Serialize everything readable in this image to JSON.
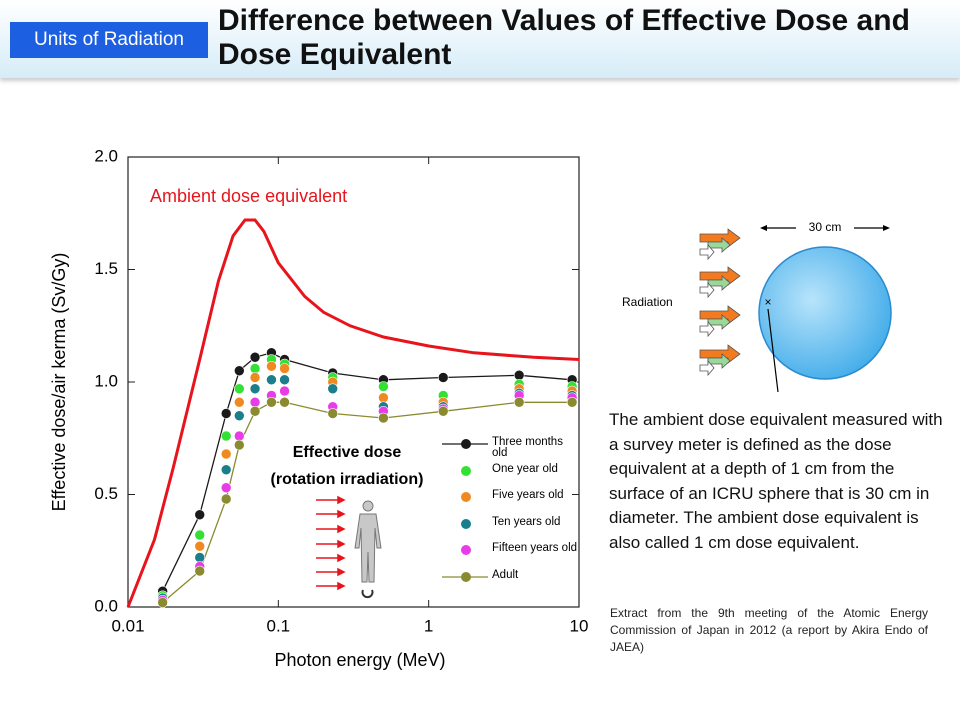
{
  "header": {
    "tag": "Units of Radiation",
    "title": "Difference between Values of Effective Dose and Dose Equivalent"
  },
  "chart_data": {
    "type": "line",
    "xlabel": "Photon energy (MeV)",
    "ylabel": "Effective dose/air kerma (Sv/Gy)",
    "xscale": "log",
    "xlim": [
      0.01,
      10
    ],
    "xticks": [
      0.01,
      0.1,
      1,
      10
    ],
    "ylim": [
      0,
      2.0
    ],
    "yticks": [
      {
        "value": 0,
        "label": "0.0"
      },
      0.5,
      {
        "value": 1,
        "label": "1.0"
      },
      1.5,
      {
        "value": 2,
        "label": "2.0"
      }
    ],
    "annotations": [
      "Effective dose",
      "(rotation irradiation)"
    ],
    "series": [
      {
        "name": "Ambient dose equivalent",
        "color": "#e8141c",
        "line": true,
        "markers": false,
        "x": [
          0.01,
          0.015,
          0.02,
          0.03,
          0.04,
          0.05,
          0.06,
          0.07,
          0.08,
          0.1,
          0.15,
          0.2,
          0.3,
          0.5,
          1,
          2,
          5,
          10
        ],
        "values": [
          0,
          0.3,
          0.62,
          1.1,
          1.45,
          1.65,
          1.72,
          1.72,
          1.67,
          1.53,
          1.38,
          1.31,
          1.25,
          1.2,
          1.16,
          1.13,
          1.11,
          1.1
        ]
      },
      {
        "name": "Three months old",
        "color": "#1a1a1a",
        "line": true,
        "markers": true,
        "x": [
          0.017,
          0.03,
          0.045,
          0.055,
          0.07,
          0.09,
          0.11,
          0.23,
          0.5,
          1.25,
          4,
          9
        ],
        "values": [
          0.07,
          0.41,
          0.86,
          1.05,
          1.11,
          1.13,
          1.1,
          1.04,
          1.01,
          1.02,
          1.03,
          1.01
        ]
      },
      {
        "name": "One year old",
        "color": "#33e033",
        "line": false,
        "markers": true,
        "x": [
          0.017,
          0.03,
          0.045,
          0.055,
          0.07,
          0.09,
          0.11,
          0.23,
          0.5,
          1.25,
          4,
          9
        ],
        "values": [
          0.05,
          0.32,
          0.76,
          0.97,
          1.06,
          1.1,
          1.08,
          1.02,
          0.98,
          0.94,
          0.99,
          0.98
        ]
      },
      {
        "name": "Five years old",
        "color": "#f08a20",
        "line": false,
        "markers": true,
        "x": [
          0.017,
          0.03,
          0.045,
          0.055,
          0.07,
          0.09,
          0.11,
          0.23,
          0.5,
          1.25,
          4,
          9
        ],
        "values": [
          0.04,
          0.27,
          0.68,
          0.91,
          1.02,
          1.07,
          1.06,
          1.0,
          0.93,
          0.91,
          0.97,
          0.96
        ]
      },
      {
        "name": "Ten years old",
        "color": "#1a7f8a",
        "line": false,
        "markers": true,
        "x": [
          0.017,
          0.03,
          0.045,
          0.055,
          0.07,
          0.09,
          0.11,
          0.23,
          0.5,
          1.25,
          4,
          9
        ],
        "values": [
          0.04,
          0.22,
          0.61,
          0.85,
          0.97,
          1.01,
          1.01,
          0.97,
          0.89,
          0.89,
          0.95,
          0.94
        ]
      },
      {
        "name": "Fifteen years old",
        "color": "#e83ce8",
        "line": false,
        "markers": true,
        "x": [
          0.017,
          0.03,
          0.045,
          0.055,
          0.07,
          0.09,
          0.11,
          0.23,
          0.5,
          1.25,
          4,
          9
        ],
        "values": [
          0.03,
          0.18,
          0.53,
          0.76,
          0.91,
          0.94,
          0.96,
          0.89,
          0.87,
          0.88,
          0.94,
          0.93
        ]
      },
      {
        "name": "Adult",
        "color": "#8a8a30",
        "line": true,
        "markers": true,
        "x": [
          0.017,
          0.03,
          0.045,
          0.055,
          0.07,
          0.09,
          0.11,
          0.23,
          0.5,
          1.25,
          4,
          9
        ],
        "values": [
          0.02,
          0.16,
          0.48,
          0.72,
          0.87,
          0.91,
          0.91,
          0.86,
          0.84,
          0.87,
          0.91,
          0.91
        ]
      }
    ]
  },
  "diagram": {
    "size_label": "30 cm",
    "source_label": "Radiation"
  },
  "text": {
    "description": "The ambient dose equivalent measured with a survey meter is defined as the dose equivalent at a depth of 1 cm from the surface of an ICRU sphere that is 30 cm in diameter. The ambient dose equivalent is also called 1 cm dose equivalent.",
    "source": "Extract from the 9th meeting of the Atomic Energy Commission of Japan in 2012 (a report by Akira Endo of JAEA)"
  }
}
